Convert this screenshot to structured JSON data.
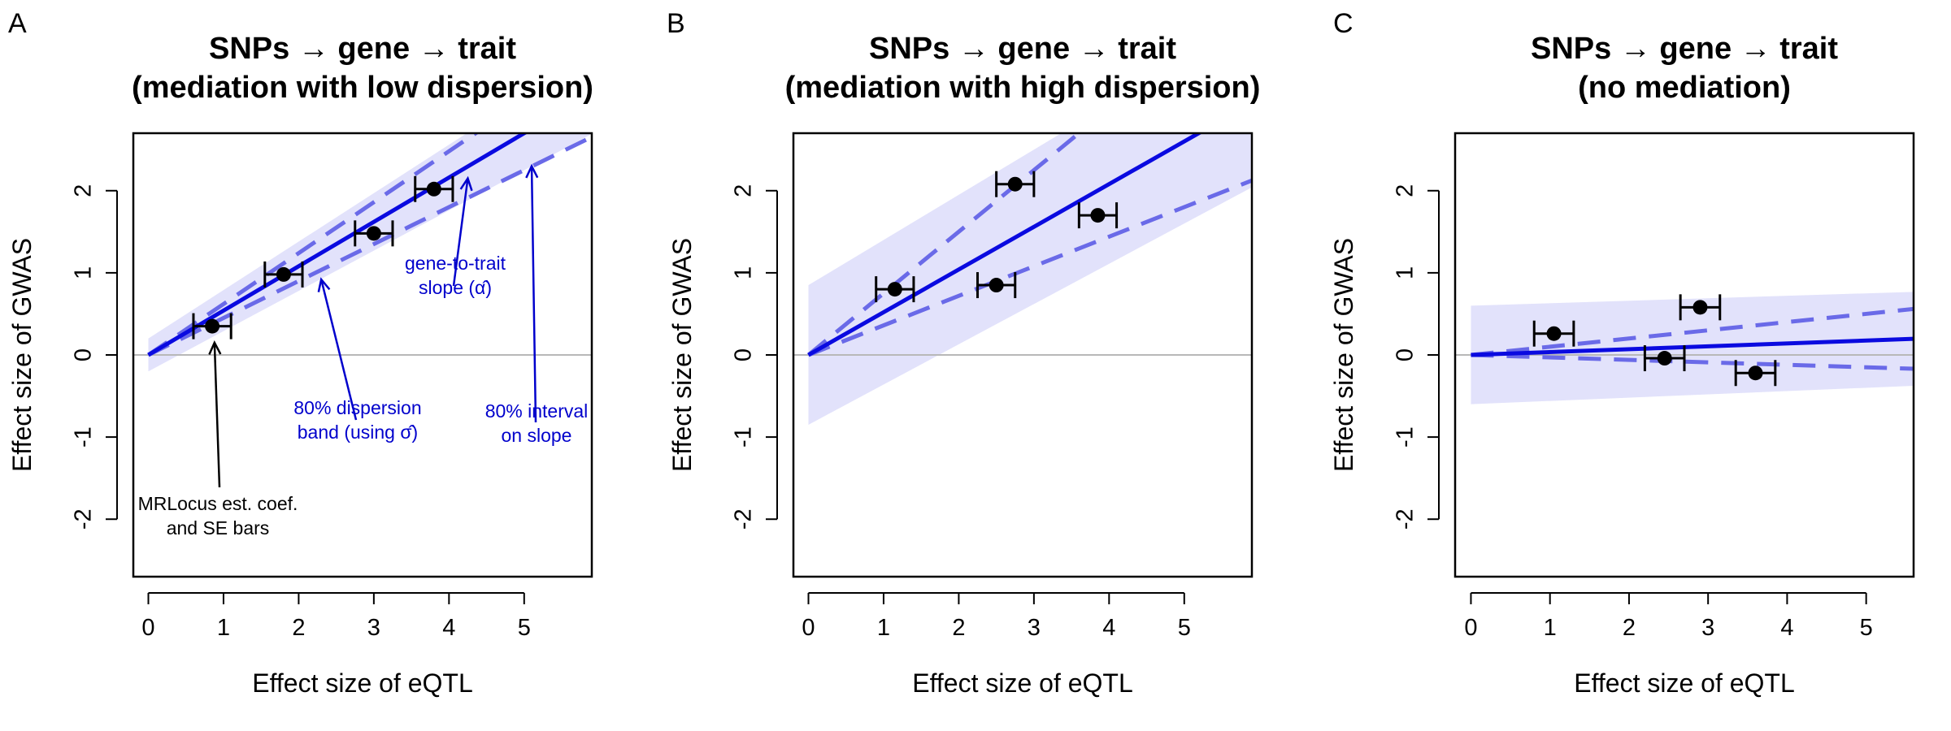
{
  "chart_data": [
    {
      "type": "scatter",
      "panel": "A",
      "title": "SNPs → gene → trait",
      "subtitle": "(mediation with low dispersion)",
      "xlabel": "Effect size of eQTL",
      "ylabel": "Effect size of GWAS",
      "xlim": [
        -0.2,
        5.9
      ],
      "ylim": [
        -2.7,
        2.7
      ],
      "x_ticks": [
        "0",
        "1",
        "2",
        "3",
        "4",
        "5"
      ],
      "y_ticks": [
        "-2",
        "-1",
        "0",
        "1",
        "2"
      ],
      "points": [
        {
          "x": 0.85,
          "y": 0.35,
          "x_se": 0.25
        },
        {
          "x": 1.8,
          "y": 0.98,
          "x_se": 0.25
        },
        {
          "x": 3.0,
          "y": 1.48,
          "x_se": 0.25
        },
        {
          "x": 3.8,
          "y": 2.02,
          "x_se": 0.25
        }
      ],
      "slope": 0.54,
      "slope_interval": [
        0.45,
        0.62
      ],
      "band": {
        "intercept_low": -0.2,
        "intercept_high": 0.2,
        "slope_low": 0.49,
        "slope_high": 0.59
      },
      "annotations": [
        {
          "lines": [
            "gene-to-trait",
            "slope (α̂)"
          ],
          "color": "blue",
          "x": 4.25,
          "y": -0.75,
          "arrow_to": [
            4.25,
            2.15
          ]
        },
        {
          "lines": [
            "80% dispersion",
            "band (using σ̂)"
          ],
          "color": "blue",
          "x": 3.35,
          "y": -0.98,
          "arrow_to": [
            2.3,
            0.92
          ]
        },
        {
          "lines": [
            "80% interval",
            "on slope"
          ],
          "color": "blue",
          "x": 5.1,
          "y": -1.1,
          "arrow_to": [
            5.1,
            2.3
          ]
        },
        {
          "lines": [
            "MRLocus est. coef.",
            "and SE bars"
          ],
          "color": "black",
          "x": 0.9,
          "y": -2.0,
          "arrow_to": [
            0.88,
            0.15
          ]
        }
      ]
    },
    {
      "type": "scatter",
      "panel": "B",
      "title": "SNPs → gene → trait",
      "subtitle": "(mediation with high dispersion)",
      "xlabel": "Effect size of eQTL",
      "ylabel": "Effect size of GWAS",
      "xlim": [
        -0.2,
        5.9
      ],
      "ylim": [
        -2.7,
        2.7
      ],
      "x_ticks": [
        "0",
        "1",
        "2",
        "3",
        "4",
        "5"
      ],
      "y_ticks": [
        "-2",
        "-1",
        "0",
        "1",
        "2"
      ],
      "points": [
        {
          "x": 1.15,
          "y": 0.8,
          "x_se": 0.25
        },
        {
          "x": 2.75,
          "y": 2.08,
          "x_se": 0.25
        },
        {
          "x": 2.5,
          "y": 0.85,
          "x_se": 0.25
        },
        {
          "x": 3.85,
          "y": 1.7,
          "x_se": 0.25
        }
      ],
      "slope": 0.52,
      "slope_interval": [
        0.36,
        0.75
      ],
      "band": {
        "intercept_low": -0.85,
        "intercept_high": 0.85,
        "slope_low": 0.49,
        "slope_high": 0.55
      }
    },
    {
      "type": "scatter",
      "panel": "C",
      "title": "SNPs → gene → trait",
      "subtitle": "(no mediation)",
      "xlabel": "Effect size of eQTL",
      "ylabel": "Effect size of GWAS",
      "xlim": [
        -0.2,
        5.6
      ],
      "ylim": [
        -2.7,
        2.7
      ],
      "x_ticks": [
        "0",
        "1",
        "2",
        "3",
        "4",
        "5"
      ],
      "y_ticks": [
        "-2",
        "-1",
        "0",
        "1",
        "2"
      ],
      "points": [
        {
          "x": 1.05,
          "y": 0.26,
          "x_se": 0.25
        },
        {
          "x": 2.9,
          "y": 0.58,
          "x_se": 0.25
        },
        {
          "x": 2.45,
          "y": -0.04,
          "x_se": 0.25
        },
        {
          "x": 3.6,
          "y": -0.22,
          "x_se": 0.25
        }
      ],
      "slope": 0.035,
      "slope_interval": [
        -0.03,
        0.1
      ],
      "band": {
        "intercept_low": -0.6,
        "intercept_high": 0.6,
        "slope_low": 0.04,
        "slope_high": 0.03
      }
    }
  ],
  "colors": {
    "line": "#0a0ae0",
    "dashed": "#6a6ae8",
    "band": "#e2e2fb",
    "zero_line": "#b8b8b8",
    "annotation_blue": "#0000cc",
    "axis": "#000000"
  }
}
